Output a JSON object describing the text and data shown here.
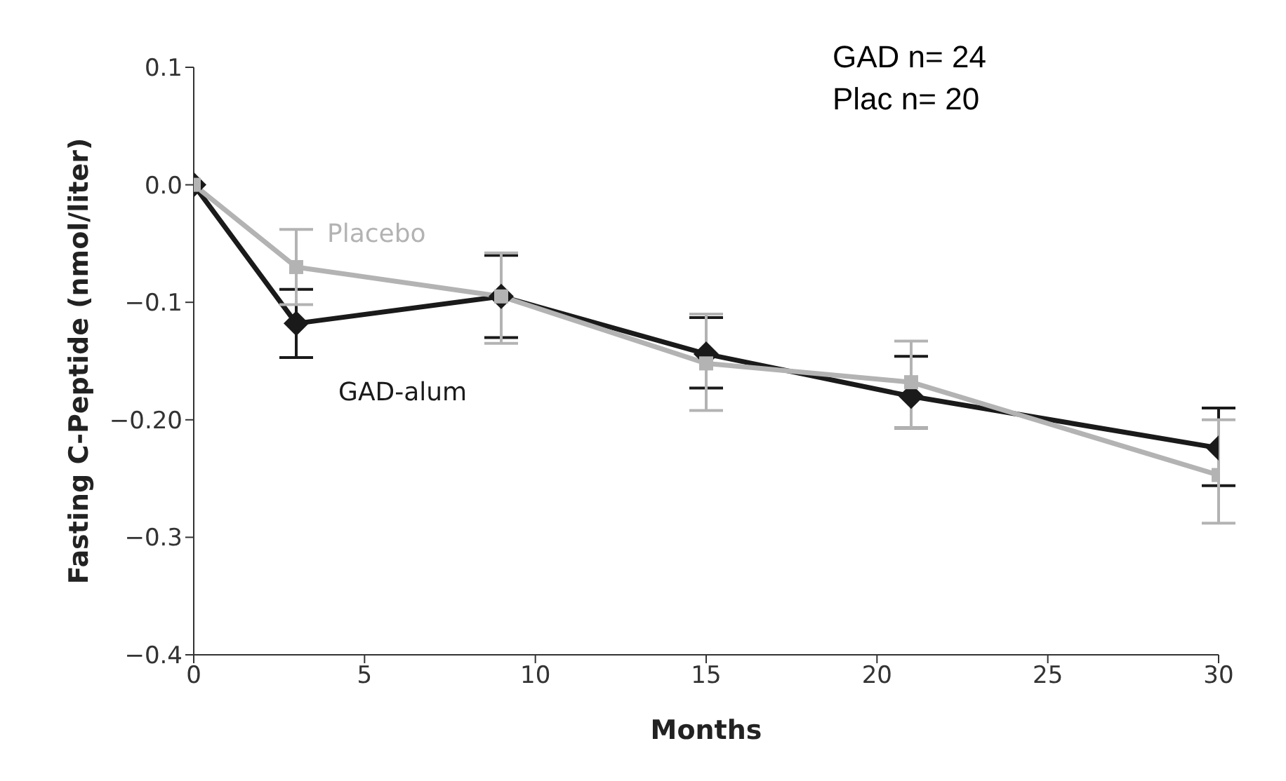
{
  "chart_data": {
    "type": "line",
    "xlabel": "Months",
    "ylabel": "Fasting C-Peptide (nmol/liter)",
    "x": [
      0,
      3,
      9,
      15,
      21,
      30
    ],
    "series": [
      {
        "name": "GAD-alum",
        "color": "#1a1a1a",
        "marker": "diamond",
        "values": [
          0,
          -0.118,
          -0.095,
          -0.144,
          -0.18,
          -0.224
        ],
        "errors": [
          null,
          [
            -0.147,
            -0.089
          ],
          [
            -0.13,
            -0.06
          ],
          [
            -0.173,
            -0.113
          ],
          [
            -0.207,
            -0.146
          ],
          [
            -0.256,
            -0.19
          ]
        ]
      },
      {
        "name": "Placebo",
        "color": "#b3b3b3",
        "marker": "square",
        "values": [
          0,
          -0.07,
          -0.095,
          -0.152,
          -0.168,
          -0.247
        ],
        "errors": [
          null,
          [
            -0.102,
            -0.038
          ],
          [
            -0.135,
            -0.058
          ],
          [
            -0.192,
            -0.11
          ],
          [
            -0.207,
            -0.133
          ],
          [
            -0.288,
            -0.2
          ]
        ]
      }
    ],
    "xlim": [
      0,
      30
    ],
    "xticks": [
      0,
      5,
      10,
      15,
      20,
      25,
      30
    ],
    "ylim": [
      -0.4,
      0.1
    ],
    "yticks": [
      {
        "value": -0.4,
        "label": "−0.4"
      },
      {
        "value": -0.3,
        "label": "−0.3"
      },
      {
        "value": -0.2,
        "label": "−0.20"
      },
      {
        "value": -0.1,
        "label": "−0.1"
      },
      {
        "value": 0,
        "label": "0.0"
      },
      {
        "value": 0.1,
        "label": "0.1"
      }
    ],
    "annotations": [
      "GAD n= 24",
      "Plac n= 20"
    ],
    "grid": false,
    "legend": false
  }
}
